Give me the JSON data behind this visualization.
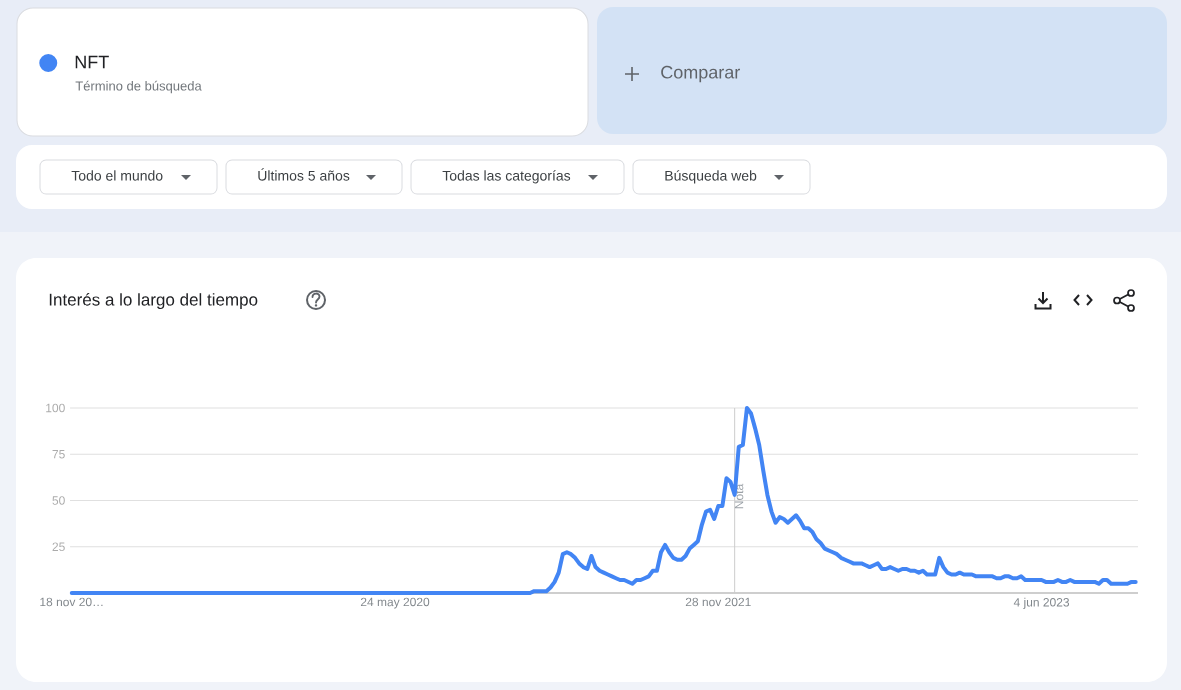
{
  "chart_data": {
    "type": "line",
    "title": "Interés a lo largo del tiempo",
    "x": [
      "2018-11-18",
      "2021-01-10",
      "2021-01-17",
      "2021-02-07",
      "2021-02-14",
      "2021-02-21",
      "2021-02-28",
      "2021-03-07",
      "2021-03-14",
      "2021-03-21",
      "2021-03-28",
      "2021-04-04",
      "2021-04-11",
      "2021-04-18",
      "2021-04-25",
      "2021-05-02",
      "2021-05-09",
      "2021-05-16",
      "2021-05-23",
      "2021-05-30",
      "2021-06-06",
      "2021-06-13",
      "2021-06-20",
      "2021-06-27",
      "2021-07-04",
      "2021-07-11",
      "2021-07-18",
      "2021-07-25",
      "2021-08-01",
      "2021-08-08",
      "2021-08-15",
      "2021-08-22",
      "2021-08-29",
      "2021-09-05",
      "2021-09-12",
      "2021-09-19",
      "2021-09-26",
      "2021-10-03",
      "2021-10-10",
      "2021-10-17",
      "2021-10-24",
      "2021-10-31",
      "2021-11-07",
      "2021-11-14",
      "2021-11-21",
      "2021-11-28",
      "2021-12-05",
      "2021-12-12",
      "2021-12-19",
      "2021-12-26",
      "2022-01-02",
      "2022-01-09",
      "2022-01-16",
      "2022-01-23",
      "2022-01-30",
      "2022-02-06",
      "2022-02-13",
      "2022-02-20",
      "2022-02-27",
      "2022-03-06",
      "2022-03-13",
      "2022-03-20",
      "2022-03-27",
      "2022-04-03",
      "2022-04-10",
      "2022-04-17",
      "2022-04-24",
      "2022-05-01",
      "2022-05-08",
      "2022-05-15",
      "2022-05-22",
      "2022-05-29",
      "2022-06-05",
      "2022-06-12",
      "2022-06-19",
      "2022-06-26",
      "2022-07-03",
      "2022-07-10",
      "2022-07-17",
      "2022-07-24",
      "2022-07-31",
      "2022-08-07",
      "2022-08-14",
      "2022-08-21",
      "2022-08-28",
      "2022-09-04",
      "2022-09-11",
      "2022-09-18",
      "2022-09-25",
      "2022-10-02",
      "2022-10-09",
      "2022-10-16",
      "2022-10-23",
      "2022-10-30",
      "2022-11-06",
      "2022-11-13",
      "2022-11-20",
      "2022-11-27",
      "2022-12-04",
      "2022-12-11",
      "2022-12-18",
      "2022-12-25",
      "2023-01-01",
      "2023-01-08",
      "2023-01-15",
      "2023-01-22",
      "2023-02-05",
      "2023-02-12",
      "2023-03-12",
      "2023-03-19",
      "2023-03-26",
      "2023-04-02",
      "2023-04-09",
      "2023-04-16",
      "2023-04-23",
      "2023-04-30",
      "2023-05-07",
      "2023-06-04",
      "2023-06-11",
      "2023-06-25",
      "2023-07-02",
      "2023-07-09",
      "2023-07-16",
      "2023-07-23",
      "2023-07-30",
      "2023-09-03",
      "2023-09-10",
      "2023-09-17",
      "2023-09-24",
      "2023-10-01",
      "2023-10-29",
      "2023-11-05",
      "2023-11-12"
    ],
    "series": [
      {
        "name": "NFT",
        "color": "#4285f4",
        "values": [
          0,
          0,
          1,
          1,
          3,
          6,
          11,
          21,
          22,
          21,
          19,
          16,
          14,
          13,
          20,
          14,
          12,
          11,
          10,
          9,
          8,
          7,
          7,
          6,
          5,
          7,
          7,
          8,
          9,
          12,
          12,
          22,
          26,
          22,
          19,
          18,
          18,
          20,
          24,
          26,
          28,
          37,
          44,
          45,
          40,
          47,
          47,
          62,
          60,
          53,
          79,
          80,
          100,
          97,
          89,
          80,
          66,
          53,
          44,
          38,
          41,
          40,
          38,
          40,
          42,
          39,
          35,
          35,
          33,
          29,
          27,
          24,
          23,
          22,
          21,
          19,
          18,
          17,
          16,
          16,
          16,
          15,
          14,
          15,
          16,
          13,
          13,
          14,
          13,
          12,
          13,
          13,
          12,
          12,
          11,
          12,
          10,
          10,
          10,
          19,
          14,
          11,
          10,
          10,
          11,
          10,
          10,
          9,
          9,
          8,
          8,
          9,
          9,
          8,
          8,
          9,
          7,
          7,
          6,
          6,
          7,
          6,
          6,
          7,
          6,
          6,
          5,
          7,
          7,
          5,
          5,
          6,
          6
        ]
      }
    ],
    "xlim": [
      "2018-11-15",
      "2023-11-16"
    ],
    "xticks": [
      {
        "value": "2018-11-18",
        "label": "18 nov 20…"
      },
      {
        "value": "2020-05-24",
        "label": "24 may 2020"
      },
      {
        "value": "2021-11-28",
        "label": "28 nov 2021"
      },
      {
        "value": "2023-06-04",
        "label": "4 jun 2023"
      }
    ],
    "ylim": [
      0,
      100
    ],
    "yticks": [
      25,
      50,
      75,
      100
    ],
    "grid": "y",
    "legend": "top left",
    "ref_lines": [
      {
        "axis": "x",
        "value": "2021-12-26",
        "label": "Nota",
        "color": "#cccccc"
      }
    ],
    "annotations": [
      "Término de búsqueda",
      "Comparar",
      "Todo el mundo",
      "Últimos 5 años",
      "Todas las categorías",
      "Búsqueda web"
    ]
  }
}
